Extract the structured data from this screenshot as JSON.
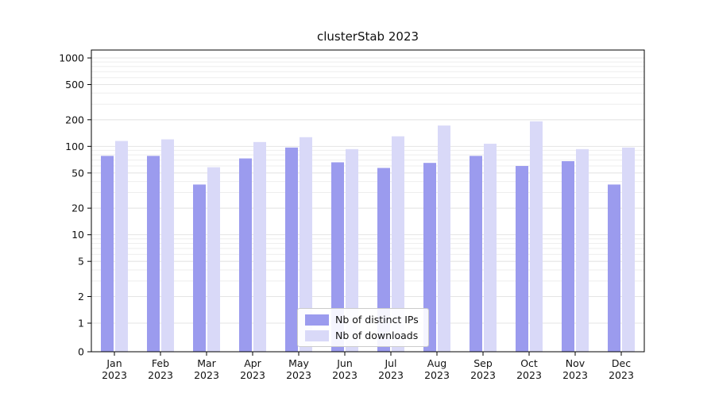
{
  "chart_data": {
    "type": "bar",
    "title": "clusterStab 2023",
    "scale": "symlog",
    "grid": true,
    "ylim": [
      0,
      1000
    ],
    "yticks": [
      0,
      1,
      2,
      5,
      10,
      20,
      50,
      100,
      200,
      500,
      1000
    ],
    "categories": [
      "Jan",
      "Feb",
      "Mar",
      "Apr",
      "May",
      "Jun",
      "Jul",
      "Aug",
      "Sep",
      "Oct",
      "Nov",
      "Dec"
    ],
    "x_year": "2023",
    "legend_position": "lower-center",
    "series": [
      {
        "name": "Nb of distinct IPs",
        "color": "#9b9bee",
        "values": [
          78,
          78,
          37,
          73,
          97,
          66,
          57,
          65,
          78,
          60,
          68,
          37
        ]
      },
      {
        "name": "Nb of downloads",
        "color": "#d9d9f8",
        "values": [
          115,
          120,
          58,
          112,
          127,
          93,
          130,
          172,
          107,
          192,
          93,
          97
        ]
      }
    ]
  }
}
